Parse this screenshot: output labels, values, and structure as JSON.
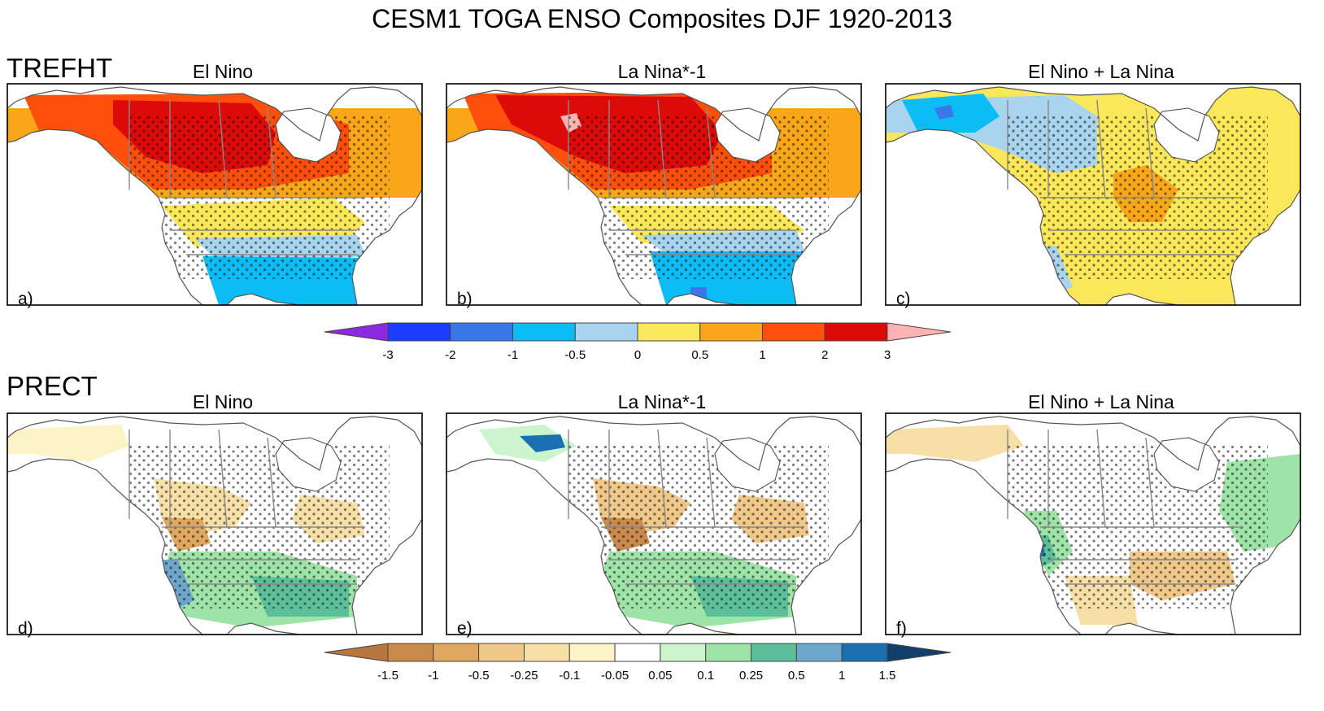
{
  "figure": {
    "title": "CESM1 TOGA ENSO Composites DJF 1920-2013"
  },
  "rows": [
    {
      "variable": "TREFHT",
      "panels": [
        {
          "letter": "a)",
          "title": "El Nino",
          "pattern": "warm_north"
        },
        {
          "letter": "b)",
          "title": "La Nina*-1",
          "pattern": "warm_north_strong"
        },
        {
          "letter": "c)",
          "title": "El Nino + La Nina",
          "pattern": "asym_temp"
        }
      ],
      "colorbar": {
        "ticks": [
          "-3",
          "-2",
          "-1",
          "-0.5",
          "0",
          "0.5",
          "1",
          "2",
          "3"
        ],
        "colors": [
          "#8a2be2",
          "#1e3cff",
          "#3a78ea",
          "#0bbcf5",
          "#a8d4ee",
          "#fbe75a",
          "#f9a61a",
          "#ff4f0c",
          "#dd0a0a",
          "#ffb3b3"
        ]
      }
    },
    {
      "variable": "PRECT",
      "panels": [
        {
          "letter": "d)",
          "title": "El Nino",
          "pattern": "wet_south"
        },
        {
          "letter": "e)",
          "title": "La Nina*-1",
          "pattern": "wet_south_strong"
        },
        {
          "letter": "f)",
          "title": "El Nino + La Nina",
          "pattern": "asym_prec"
        }
      ],
      "colorbar": {
        "ticks": [
          "-1.5",
          "-1",
          "-0.5",
          "-0.25",
          "-0.1",
          "-0.05",
          "0.05",
          "0.1",
          "0.25",
          "0.5",
          "1",
          "1.5"
        ],
        "colors": [
          "#b5773e",
          "#c98a4c",
          "#e0a85f",
          "#efc88a",
          "#f6e0a8",
          "#fcf3c6",
          "#ffffff",
          "#cdf5cd",
          "#9ee3a7",
          "#5cbf9a",
          "#6fa7cc",
          "#1a6fb0",
          "#123f6a"
        ]
      }
    }
  ]
}
